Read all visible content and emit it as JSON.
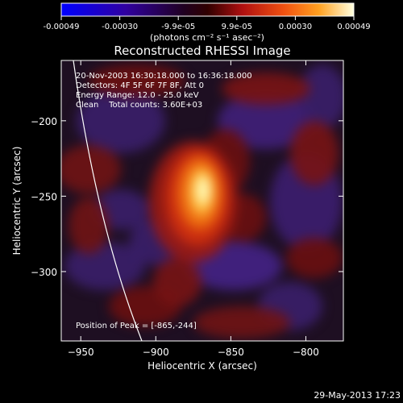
{
  "chart_data": {
    "type": "heatmap",
    "title": "Reconstructed RHESSI Image",
    "colorbar": {
      "ticks": [
        "-0.00049",
        "-0.00030",
        "-9.9e-05",
        "9.9e-05",
        "0.00030",
        "0.00049"
      ],
      "unit_label": "(photons cm⁻² s⁻¹ asec⁻²)",
      "range": [
        -0.00049,
        0.00049
      ]
    },
    "annotations": {
      "time": "20-Nov-2003 16:30:18.000 to 16:36:18.000",
      "detectors": "Detectors: 4F 5F 6F 7F 8F, Att 0",
      "energy": "Energy Range: 12.0 - 25.0 keV",
      "clean": "Clean    Total counts: 3.60E+03",
      "peak": "Position of Peak = [-865,-244]"
    },
    "xlabel": "Heliocentric X (arcsec)",
    "ylabel": "Heliocentric Y (arcsec)",
    "xlim": [
      -963,
      -775
    ],
    "ylim": [
      -346,
      -160
    ],
    "xticks": [
      -950,
      -900,
      -850,
      -800
    ],
    "yticks": [
      -200,
      -250,
      -300
    ],
    "peak": {
      "x": -865,
      "y": -244,
      "value": 0.00049
    },
    "footer_date": "29-May-2013 17:23",
    "colors": {
      "background": "#000000",
      "colormap": [
        "#0000ff",
        "#3a2aa0",
        "#3a2468",
        "#1a1010",
        "#8a1010",
        "#e03010",
        "#ff8000",
        "#ffff80",
        "#ffffff"
      ]
    }
  }
}
